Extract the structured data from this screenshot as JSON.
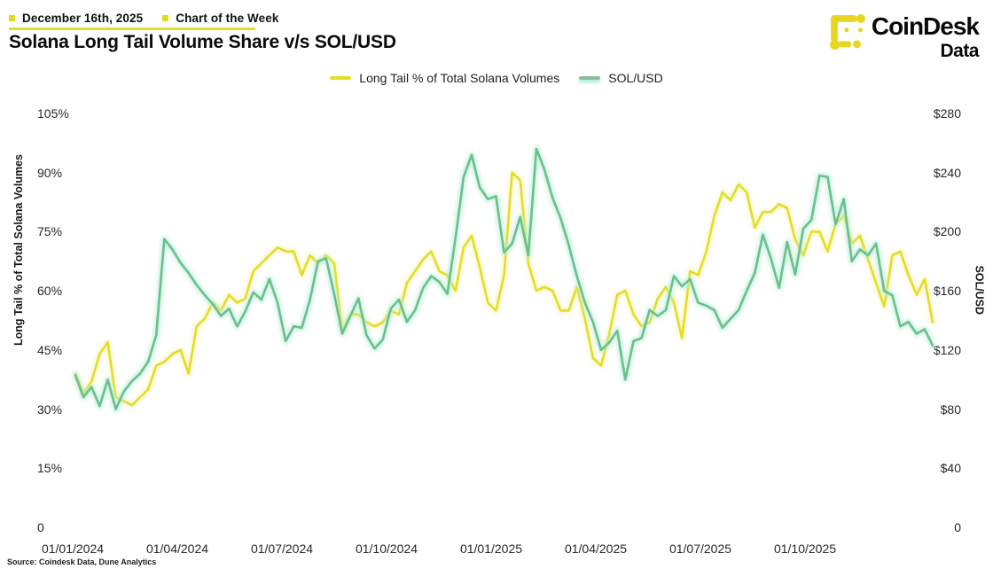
{
  "header": {
    "date_label": "December 16th, 2025",
    "topic_label": "Chart of the Week",
    "title": "Solana Long Tail Volume Share v/s SOL/USD"
  },
  "brand": {
    "name": "CoinDesk",
    "sub": "Data",
    "mark_color": "#e7d622"
  },
  "legend": [
    {
      "label": "Long Tail % of Total Solana Volumes",
      "color": "#e4de20"
    },
    {
      "label": "SOL/USD",
      "color": "#8cbb9d"
    }
  ],
  "source_note": "Source: Coindesk Data, Dune Analytics",
  "chart_data": {
    "type": "line",
    "title": "Solana Long Tail Volume Share v/s SOL/USD",
    "grid": false,
    "legend_position": "top",
    "x": {
      "start_date": "2024-01-01",
      "end_date": "2025-12-16",
      "tick_labels": [
        "01/01/2024",
        "01/04/2024",
        "01/07/2024",
        "01/10/2024",
        "01/01/2025",
        "01/04/2025",
        "01/07/2025",
        "01/10/2025"
      ]
    },
    "y_left": {
      "title": "Long Tail % of Total Solana Volumes",
      "min": 0,
      "max": 105,
      "step": 15,
      "tick_labels": [
        "0",
        "15%",
        "30%",
        "45%",
        "60%",
        "75%",
        "90%",
        "105%"
      ]
    },
    "y_right": {
      "title": "SOL/USD",
      "min": 0,
      "max": 280,
      "step": 40,
      "tick_labels": [
        "0",
        "$40",
        "$80",
        "$120",
        "$160",
        "$200",
        "$240",
        "$280"
      ]
    },
    "series": [
      {
        "name": "Long Tail % of Total Solana Volumes",
        "axis": "left",
        "color": "#e4de20",
        "glow": "#f4f0a8",
        "values": [
          39,
          34,
          37,
          44,
          47,
          33,
          32,
          31,
          33,
          35,
          41,
          42,
          44,
          45,
          39,
          51,
          53,
          57,
          55,
          59,
          57,
          58,
          65,
          67,
          69,
          71,
          70,
          70,
          64,
          69,
          67,
          69,
          67,
          50,
          54,
          54,
          52,
          51,
          52,
          55,
          54,
          62,
          65,
          68,
          70,
          65,
          64,
          60,
          71,
          74,
          66,
          57,
          55,
          64,
          90,
          88,
          67,
          60,
          61,
          60,
          55,
          55,
          61,
          53,
          43,
          41,
          49,
          59,
          60,
          54,
          51,
          52,
          58,
          61,
          57,
          48,
          65,
          64,
          70,
          79,
          85,
          83,
          87,
          85,
          76,
          80,
          80,
          82,
          81,
          73,
          69,
          75,
          75,
          70,
          77,
          79,
          72,
          74,
          68,
          62,
          56,
          69,
          70,
          64,
          59,
          63,
          52
        ]
      },
      {
        "name": "SOL/USD",
        "axis": "right",
        "color": "#68c18d",
        "glow": "#bdeed8",
        "values": [
          103,
          88,
          95,
          82,
          100,
          80,
          92,
          99,
          104,
          112,
          130,
          195,
          188,
          179,
          172,
          164,
          157,
          151,
          143,
          148,
          136,
          146,
          159,
          154,
          168,
          152,
          126,
          136,
          135,
          154,
          180,
          182,
          158,
          131,
          143,
          155,
          130,
          121,
          127,
          148,
          154,
          139,
          147,
          162,
          170,
          166,
          158,
          196,
          237,
          252,
          230,
          222,
          224,
          186,
          192,
          210,
          184,
          256,
          242,
          223,
          209,
          191,
          170,
          152,
          139,
          120,
          125,
          133,
          100,
          126,
          128,
          147,
          143,
          147,
          170,
          163,
          168,
          152,
          150,
          147,
          135,
          141,
          147,
          160,
          172,
          198,
          182,
          162,
          193,
          171,
          202,
          208,
          238,
          237,
          205,
          222,
          180,
          188,
          184,
          192,
          160,
          157,
          136,
          139,
          131,
          134,
          123
        ]
      }
    ]
  }
}
